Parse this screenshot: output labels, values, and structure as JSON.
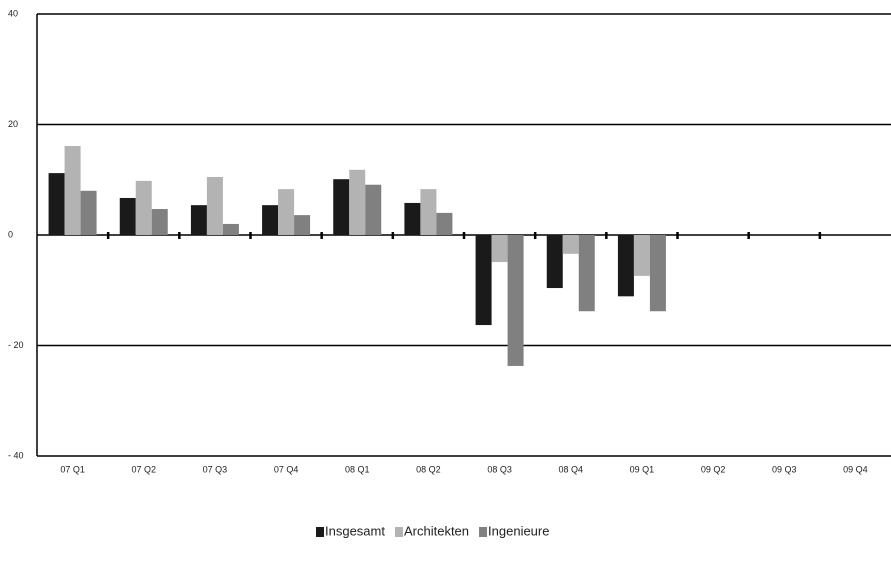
{
  "chart_data": {
    "type": "bar",
    "categories": [
      "07 Q1",
      "07 Q2",
      "07 Q3",
      "07 Q4",
      "08 Q1",
      "08 Q2",
      "08 Q3",
      "08 Q4",
      "09 Q1",
      "09 Q2",
      "09 Q3",
      "09 Q4"
    ],
    "series": [
      {
        "name": "Insgesamt",
        "color": "#1a1a1a",
        "values": [
          11.2,
          6.7,
          5.4,
          5.4,
          10.1,
          5.8,
          -16.3,
          -9.6,
          -11.1,
          null,
          null,
          null
        ]
      },
      {
        "name": "Architekten",
        "color": "#b3b3b3",
        "values": [
          16.1,
          9.8,
          10.5,
          8.3,
          11.8,
          8.3,
          -4.9,
          -3.4,
          -7.4,
          null,
          null,
          null
        ]
      },
      {
        "name": "Ingenieure",
        "color": "#808080",
        "values": [
          8.0,
          4.7,
          2.0,
          3.6,
          9.1,
          4.0,
          -23.7,
          -13.8,
          -13.8,
          null,
          null,
          null
        ]
      }
    ],
    "ylim": [
      -40,
      40
    ],
    "yticks": [
      {
        "value": -40,
        "label": "- 40"
      },
      {
        "value": -20,
        "label": "- 20"
      },
      0,
      20,
      40
    ],
    "grid": true,
    "legend": "bottom"
  }
}
